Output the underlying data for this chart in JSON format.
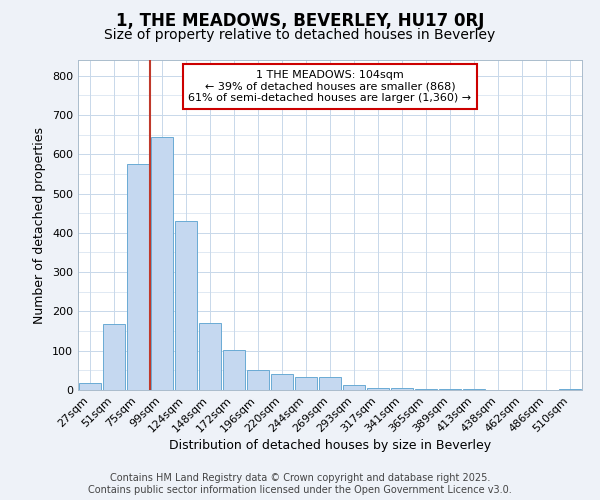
{
  "title": "1, THE MEADOWS, BEVERLEY, HU17 0RJ",
  "subtitle": "Size of property relative to detached houses in Beverley",
  "xlabel": "Distribution of detached houses by size in Beverley",
  "ylabel": "Number of detached properties",
  "categories": [
    "27sqm",
    "51sqm",
    "75sqm",
    "99sqm",
    "124sqm",
    "148sqm",
    "172sqm",
    "196sqm",
    "220sqm",
    "244sqm",
    "269sqm",
    "293sqm",
    "317sqm",
    "341sqm",
    "365sqm",
    "389sqm",
    "413sqm",
    "438sqm",
    "462sqm",
    "486sqm",
    "510sqm"
  ],
  "values": [
    18,
    168,
    575,
    643,
    430,
    170,
    101,
    52,
    40,
    32,
    32,
    12,
    4,
    4,
    3,
    2,
    2,
    1,
    1,
    1,
    2
  ],
  "bar_color": "#c5d8f0",
  "bar_edge_color": "#6aaad4",
  "ylim": [
    0,
    840
  ],
  "yticks": [
    0,
    100,
    200,
    300,
    400,
    500,
    600,
    700,
    800
  ],
  "red_line_color": "#c0392b",
  "red_line_x": 2.5,
  "annotation_text": "1 THE MEADOWS: 104sqm\n← 39% of detached houses are smaller (868)\n61% of semi-detached houses are larger (1,360) →",
  "annotation_box_edge": "#cc0000",
  "footer_line1": "Contains HM Land Registry data © Crown copyright and database right 2025.",
  "footer_line2": "Contains public sector information licensed under the Open Government Licence v3.0.",
  "bg_color": "#eef2f8",
  "plot_bg_color": "#ffffff",
  "grid_color": "#c8d8ea",
  "title_fontsize": 12,
  "subtitle_fontsize": 10,
  "axis_label_fontsize": 9,
  "tick_fontsize": 8,
  "annotation_fontsize": 8,
  "footer_fontsize": 7
}
